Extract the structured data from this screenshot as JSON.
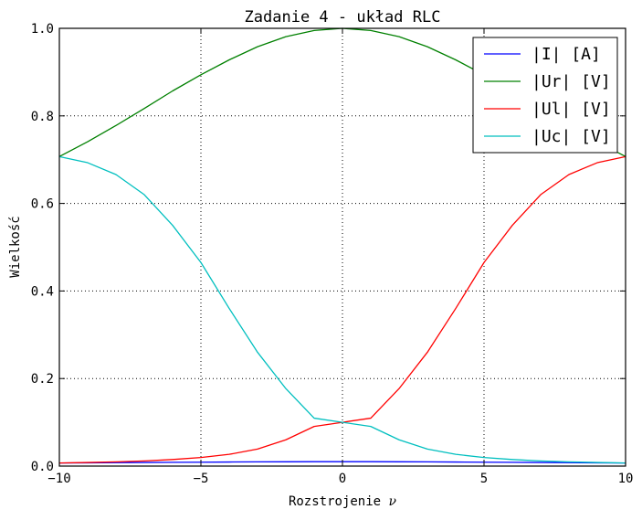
{
  "chart_data": {
    "type": "line",
    "title": "Zadanie 4 - układ RLC",
    "xlabel": "Rozstrojenie",
    "xlabel_symbol": "ν",
    "ylabel": "Wielkość",
    "xlim": [
      -10,
      10
    ],
    "ylim": [
      0.0,
      1.0
    ],
    "xticks": [
      -10,
      -5,
      0,
      5,
      10
    ],
    "xtick_labels": [
      "−10",
      "−5",
      "0",
      "5",
      "10"
    ],
    "yticks": [
      0.0,
      0.2,
      0.4,
      0.6,
      0.8,
      1.0
    ],
    "ytick_labels": [
      "0.0",
      "0.2",
      "0.4",
      "0.6",
      "0.8",
      "1.0"
    ],
    "grid": true,
    "legend_position": "top-right",
    "x": [
      -10,
      -9,
      -8,
      -7,
      -6,
      -5,
      -4,
      -3,
      -2,
      -1,
      0,
      1,
      2,
      3,
      4,
      5,
      6,
      7,
      8,
      9,
      10
    ],
    "series": [
      {
        "name": "|I| [A]",
        "color": "#0000ff",
        "values": [
          0.0071,
          0.0074,
          0.0078,
          0.0082,
          0.0086,
          0.0089,
          0.0093,
          0.0096,
          0.0098,
          0.01,
          0.01,
          0.01,
          0.0098,
          0.0096,
          0.0093,
          0.0089,
          0.0086,
          0.0082,
          0.0078,
          0.0074,
          0.0071
        ]
      },
      {
        "name": "|Ur| [V]",
        "color": "#008000",
        "values": [
          0.707,
          0.741,
          0.778,
          0.817,
          0.857,
          0.894,
          0.928,
          0.958,
          0.981,
          0.995,
          1.0,
          0.995,
          0.981,
          0.958,
          0.928,
          0.894,
          0.857,
          0.817,
          0.778,
          0.741,
          0.707
        ]
      },
      {
        "name": "|Ul| [V]",
        "color": "#ff0000",
        "values": [
          0.0071,
          0.0082,
          0.0097,
          0.0118,
          0.015,
          0.0196,
          0.0268,
          0.0388,
          0.06,
          0.0905,
          0.1,
          0.1095,
          0.177,
          0.26,
          0.36,
          0.465,
          0.55,
          0.62,
          0.666,
          0.693,
          0.707
        ]
      },
      {
        "name": "|Uc| [V]",
        "color": "#00bfbf",
        "values": [
          0.707,
          0.693,
          0.666,
          0.62,
          0.55,
          0.465,
          0.36,
          0.26,
          0.177,
          0.1095,
          0.1,
          0.0905,
          0.06,
          0.0388,
          0.0268,
          0.0196,
          0.015,
          0.0118,
          0.0097,
          0.0082,
          0.0071
        ]
      }
    ]
  }
}
